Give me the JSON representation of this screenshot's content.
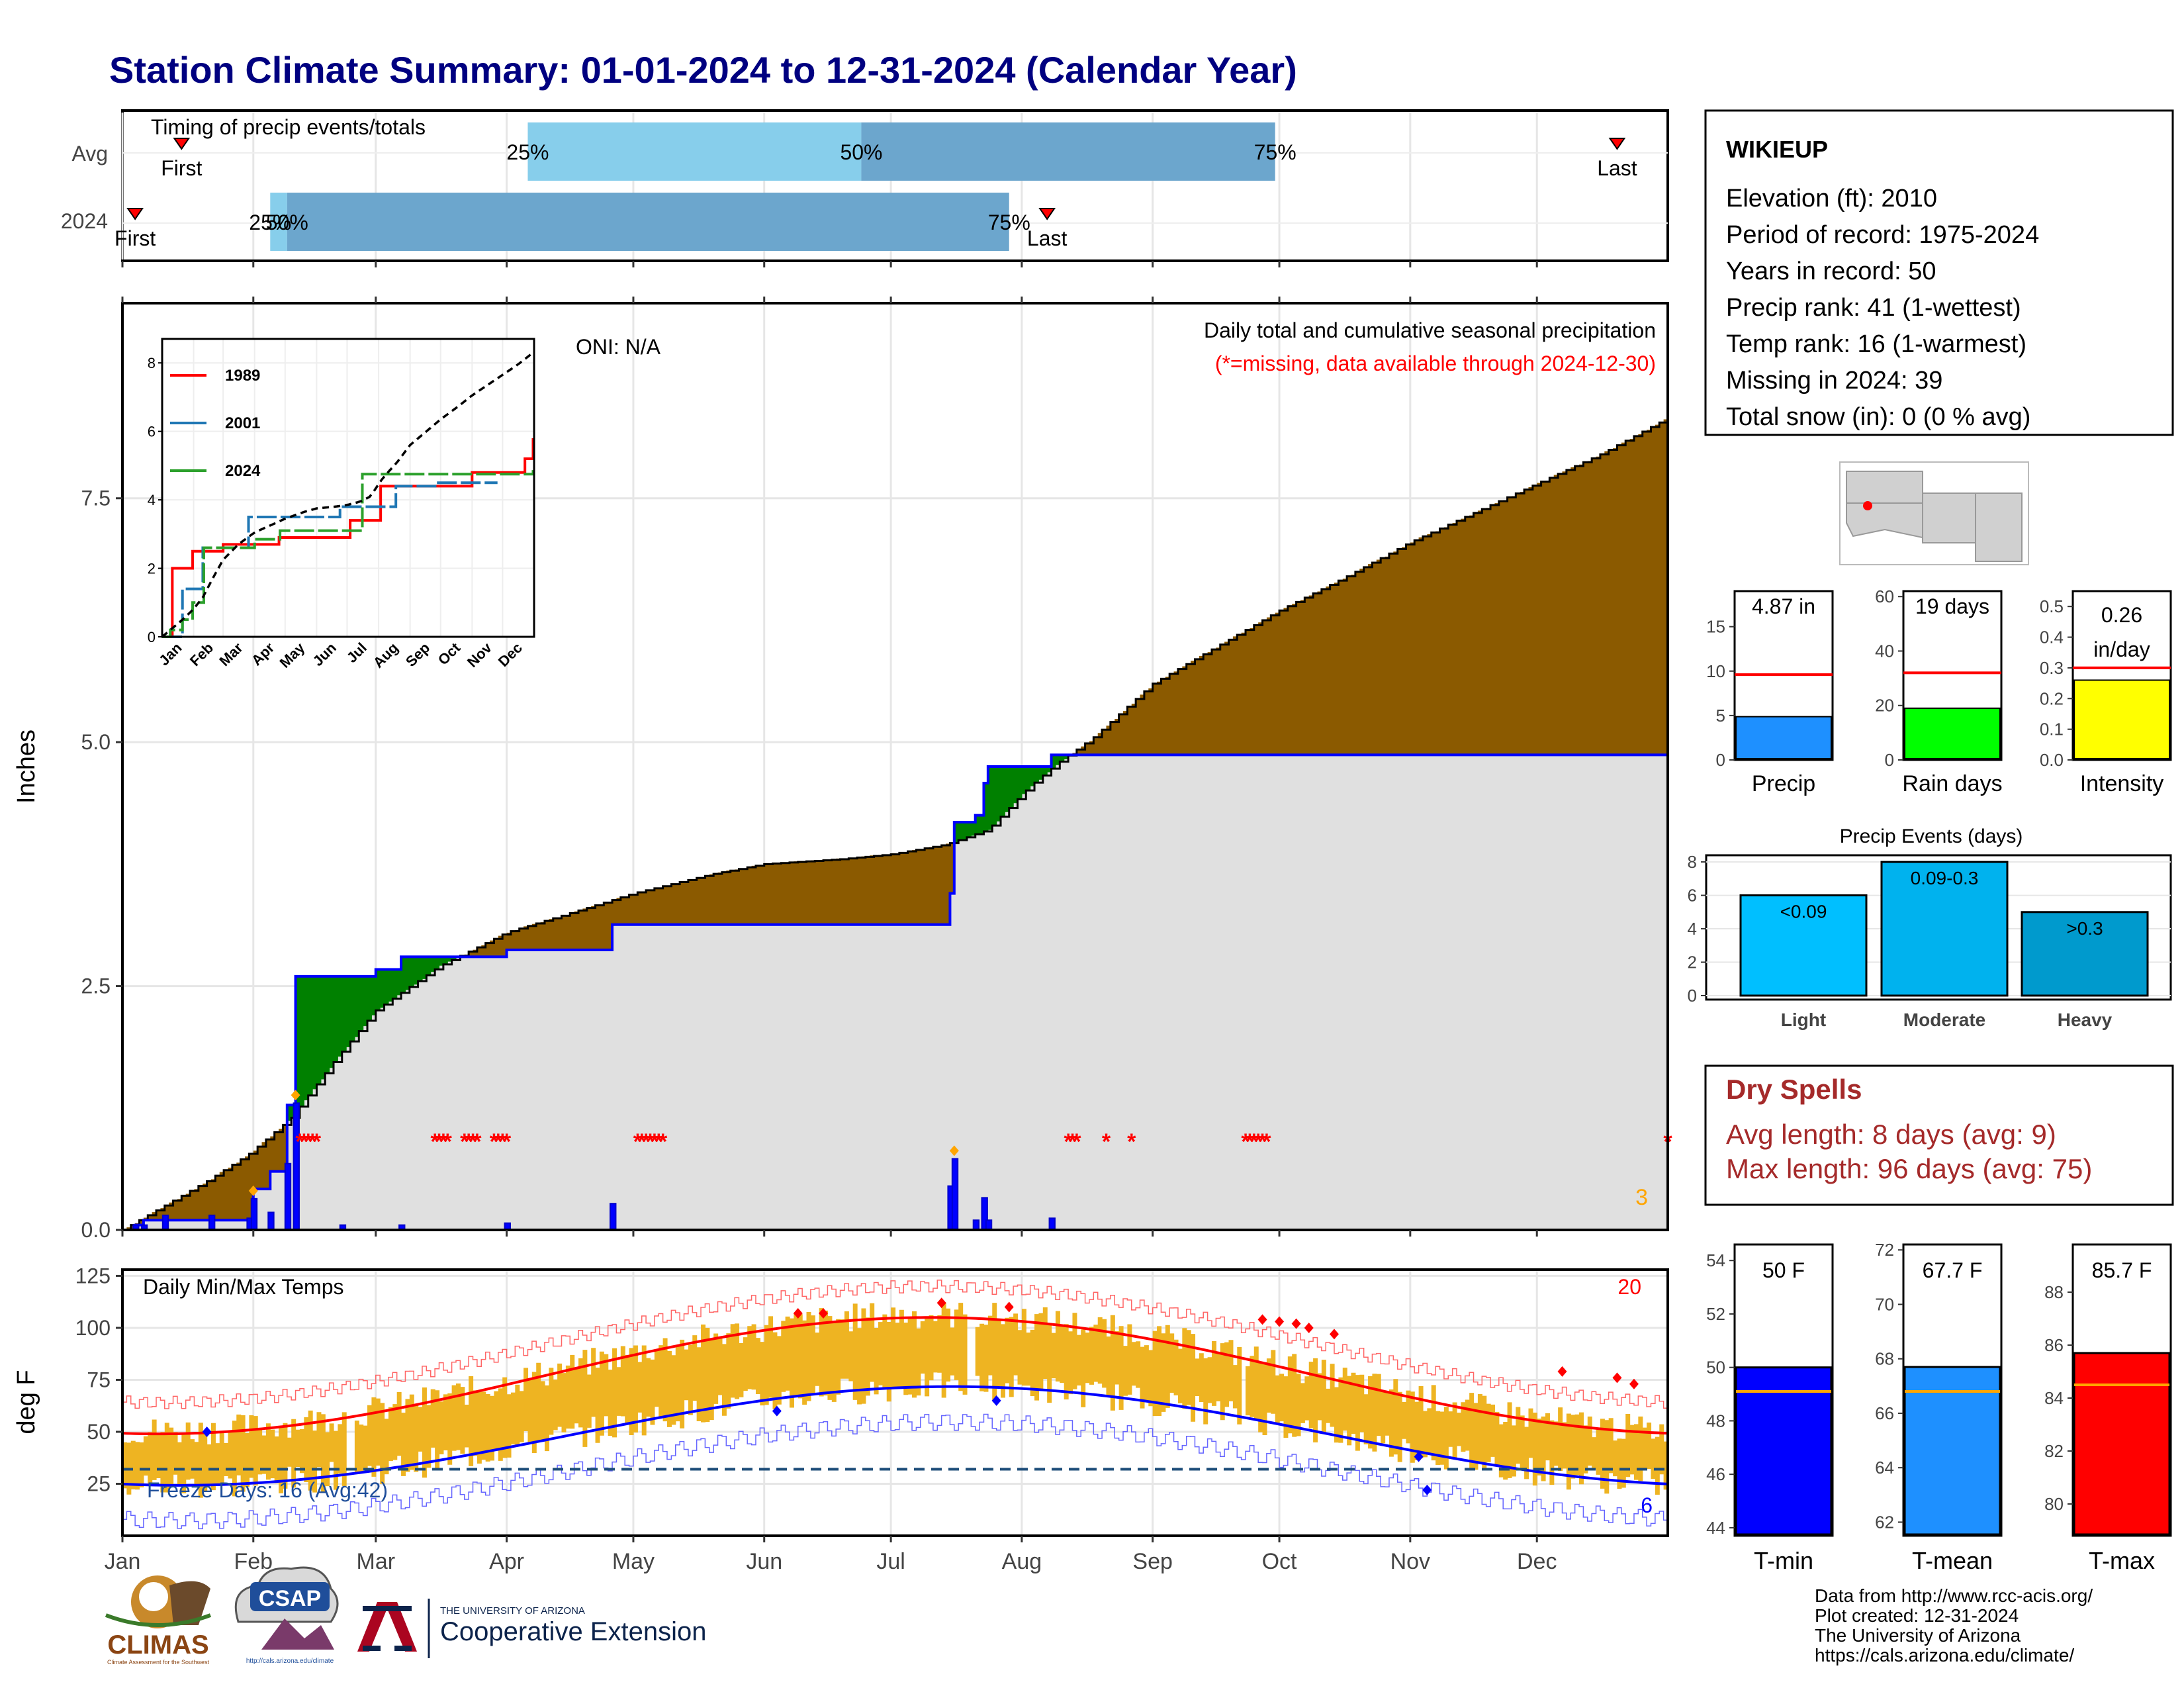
{
  "title": "Station Climate Summary: 01-01-2024 to 12-31-2024 (Calendar Year)",
  "colors": {
    "title": "#000080",
    "q1_bar": "#87ceeb",
    "q2_bar": "#6ca6cd",
    "cum_above": "#8b5a00",
    "cum_below": "#008000",
    "avg_fill": "#e0e0e0",
    "daily_bar": "#0000ff",
    "temp_bar": "#eeb422",
    "precip_bar": "#1e90ff",
    "raindays_bar": "#00ff00",
    "intensity_bar": "#ffff00",
    "light_bar": "#00bfff",
    "moderate_bar": "#00b2ee",
    "heavy_bar": "#009acd",
    "tmin_bar": "#0000ff",
    "tmean_bar": "#1e90ff",
    "tmax_bar": "#ff0000",
    "dryspell_text": "#a52a2a",
    "missing_marker": "#ff0000"
  },
  "months": [
    "Jan",
    "Feb",
    "Mar",
    "Apr",
    "May",
    "Jun",
    "Jul",
    "Aug",
    "Sep",
    "Oct",
    "Nov",
    "Dec"
  ],
  "timing": {
    "title": "Timing of precip events/totals",
    "rows": [
      {
        "label": "Avg",
        "q25_day": 96,
        "q50_day": 175,
        "q75_day": 273,
        "first_day": 14,
        "last_day": 354,
        "first_label": "First",
        "last_label": "Last",
        "q25_label": "25%",
        "q50_label": "50%",
        "q75_label": "75%"
      },
      {
        "label": "2024",
        "q25_day": 35,
        "q50_day": 39,
        "q75_day": 210,
        "first_day": 3,
        "last_day": 219,
        "first_label": "First",
        "last_label": "Last",
        "q25_label": "25%",
        "q50_label": "50%",
        "q75_label": "75%"
      }
    ]
  },
  "station": {
    "name": "WIKIEUP",
    "lines": [
      "Elevation (ft): 2010",
      "Period of record: 1975-2024",
      "Years in record: 50",
      "Precip rank: 41 (1-wettest)",
      "Temp rank: 16 (1-warmest)",
      "Missing in 2024: 39",
      "Total snow (in): 0 (0 % avg)"
    ]
  },
  "precip_panel": {
    "ylabel": "Inches",
    "oni": "ONI: N/A",
    "heading": "Daily total and cumulative seasonal precipitation",
    "missing_note": "(*=missing, data available through 2024-12-30)",
    "count_label": "3",
    "yticks": [
      "0.0",
      "2.5",
      "5.0",
      "7.5"
    ],
    "ylim": [
      0,
      9.5
    ]
  },
  "inset": {
    "legend": [
      "1989",
      "2001",
      "2024"
    ],
    "colors": [
      "#ff0000",
      "#1f77b4",
      "#2ca02c"
    ],
    "yticks": [
      "0",
      "2",
      "4",
      "6",
      "8"
    ],
    "months": [
      "Jan",
      "Feb",
      "Mar",
      "Apr",
      "May",
      "Jun",
      "Jul",
      "Aug",
      "Sep",
      "Oct",
      "Nov",
      "Dec"
    ]
  },
  "temp_panel": {
    "ylabel": "deg F",
    "heading": "Daily Min/Max Temps",
    "freeze": "Freeze Days: 16 (Avg:42)",
    "max_count": "20",
    "min_count": "6",
    "yticks": [
      "25",
      "50",
      "75",
      "100",
      "125"
    ],
    "freeze_line": 32
  },
  "mini_charts": {
    "precip": {
      "label": "Precip",
      "value_text": "4.87 in",
      "value": 4.87,
      "avg": 9.6,
      "yticks": [
        "0",
        "5",
        "10",
        "15"
      ],
      "ylim": [
        0,
        19
      ]
    },
    "raindays": {
      "label": "Rain days",
      "value_text": "19 days",
      "value": 19,
      "avg": 32,
      "yticks": [
        "0",
        "20",
        "40",
        "60"
      ],
      "ylim": [
        0,
        62
      ]
    },
    "intensity": {
      "label": "Intensity",
      "value_text_1": "0.26",
      "value_text_2": "in/day",
      "value": 0.26,
      "avg": 0.3,
      "yticks": [
        "0.0",
        "0.1",
        "0.2",
        "0.3",
        "0.4",
        "0.5"
      ],
      "ylim": [
        0,
        0.55
      ]
    }
  },
  "events": {
    "title": "Precip Events (days)",
    "categories": [
      "Light",
      "Moderate",
      "Heavy"
    ],
    "values": [
      6,
      8,
      5
    ],
    "labels": [
      "<0.09",
      "0.09-0.3",
      ">0.3"
    ],
    "yticks": [
      "0",
      "2",
      "4",
      "6",
      "8"
    ]
  },
  "dry_spells": {
    "title": "Dry Spells",
    "avg": "Avg length: 8 days (avg: 9)",
    "max": "Max length: 96 days (avg: 75)"
  },
  "temp_bars": {
    "tmin": {
      "label": "T-min",
      "value_text": "50 F",
      "value": 50,
      "avg": 49.1,
      "yticks": [
        "44",
        "46",
        "48",
        "50",
        "52",
        "54"
      ],
      "ylim": [
        43.7,
        54.6
      ]
    },
    "tmean": {
      "label": "T-mean",
      "value_text": "67.7 F",
      "value": 67.7,
      "avg": 66.8,
      "yticks": [
        "62",
        "64",
        "66",
        "68",
        "70",
        "72"
      ],
      "ylim": [
        61.5,
        72.2
      ]
    },
    "tmax": {
      "label": "T-max",
      "value_text": "85.7 F",
      "value": 85.7,
      "avg": 84.5,
      "yticks": [
        "80",
        "82",
        "84",
        "86",
        "88"
      ],
      "ylim": [
        78.8,
        89.8
      ]
    }
  },
  "footer": {
    "lines": [
      "Data from http://www.rcc-acis.org/",
      "Plot created: 12-31-2024",
      "The University of Arizona",
      "https://cals.arizona.edu/climate/"
    ],
    "climas": "CLIMAS",
    "climas_sub": "Climate Assessment for the Southwest",
    "csap": "CSAP",
    "csap_url": "http://cals.arizona.edu/climate",
    "ua_small": "THE UNIVERSITY OF ARIZONA",
    "ua_big": "Cooperative Extension"
  }
}
